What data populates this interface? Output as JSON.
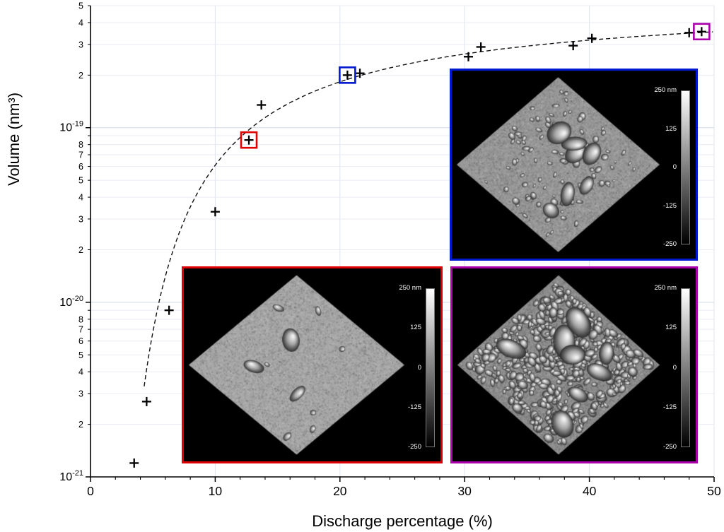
{
  "figure": {
    "xlabel": "Discharge percentage (%)",
    "ylabel": "Volume (nm³)"
  },
  "chart_data": {
    "type": "scatter",
    "xlabel": "Discharge percentage (%)",
    "ylabel": "Volume (nm^3)",
    "marker": "plus",
    "grid": true,
    "x_scale": "linear",
    "y_scale": "log",
    "xlim": [
      0,
      50
    ],
    "ylim": [
      1e-21,
      5e-19
    ],
    "x_ticks": [
      0,
      10,
      20,
      30,
      40,
      50
    ],
    "x_minor_tick_step": 2,
    "y_major_exponents": [
      -21,
      -20,
      -19
    ],
    "y_minor_labeled_digits": [
      2,
      3,
      4,
      5,
      6,
      7,
      8
    ],
    "points": [
      [
        3.5,
        1.2e-21
      ],
      [
        4.5,
        2.7e-21
      ],
      [
        6.3,
        9e-21
      ],
      [
        10.0,
        3.3e-20
      ],
      [
        12.7,
        8.5e-20
      ],
      [
        13.7,
        1.35e-19
      ],
      [
        20.6,
        2e-19
      ],
      [
        21.6,
        2.05e-19
      ],
      [
        30.3,
        2.55e-19
      ],
      [
        31.3,
        2.9e-19
      ],
      [
        38.7,
        2.95e-19
      ],
      [
        40.2,
        3.25e-19
      ],
      [
        48.0,
        3.5e-19
      ],
      [
        49.0,
        3.55e-19
      ]
    ],
    "highlighted_points": [
      {
        "x": 12.7,
        "y": 8.5e-20,
        "color": "#e00000",
        "links_to": "inset-red"
      },
      {
        "x": 20.6,
        "y": 2e-19,
        "color": "#0018d0",
        "links_to": "inset-blue"
      },
      {
        "x": 49.0,
        "y": 3.55e-19,
        "color": "#aa00aa",
        "links_to": "inset-magenta"
      }
    ],
    "trend_line": {
      "style": "dashed",
      "formula": "V = Vmax * exp(-k / x)",
      "vmax": 5.5e-19,
      "k": 22,
      "x_start": 4.3,
      "x_end": 50
    }
  },
  "insets": [
    {
      "id": "inset-blue",
      "border_color": "#0018d0",
      "surface": "medium-density-particles",
      "colorbar_ticks": [
        "250 nm",
        "125",
        "0",
        "-125",
        "-250"
      ]
    },
    {
      "id": "inset-red",
      "border_color": "#e00000",
      "surface": "sparse-large-particles",
      "colorbar_ticks": [
        "250 nm",
        "125",
        "0",
        "-125",
        "-250"
      ]
    },
    {
      "id": "inset-magenta",
      "border_color": "#aa00aa",
      "surface": "dense-rough-particles",
      "colorbar_ticks": [
        "250 nm",
        "125",
        "0",
        "-125",
        "-250"
      ]
    }
  ]
}
